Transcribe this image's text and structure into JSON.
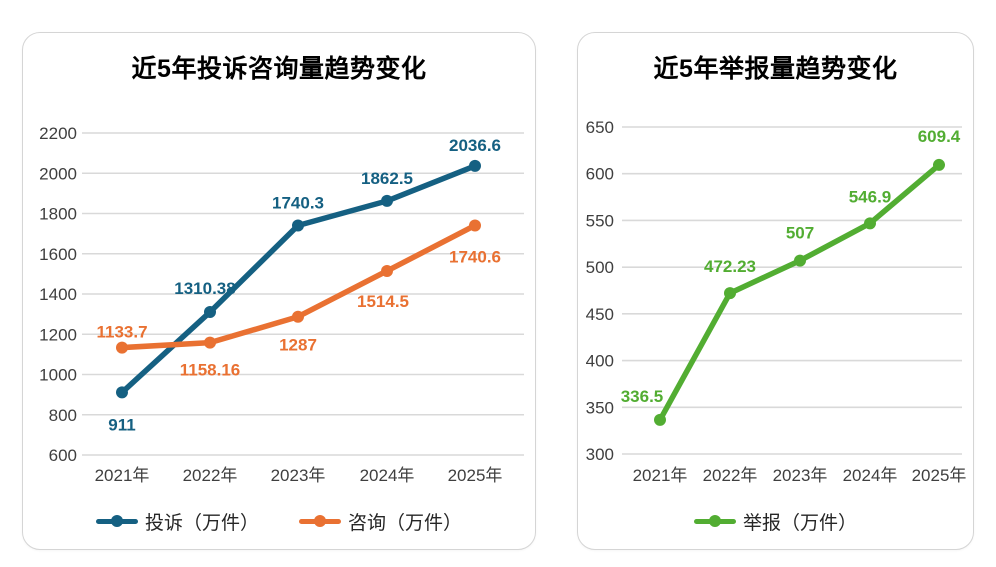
{
  "page": {
    "background": "#ffffff",
    "grid_color": "#d9d9d9",
    "tick_color": "#3f3f3f"
  },
  "chart_data": [
    {
      "type": "line",
      "title": "近5年投诉咨询量趋势变化",
      "categories": [
        "2021年",
        "2022年",
        "2023年",
        "2024年",
        "2025年"
      ],
      "xlabel": "",
      "ylabel": "",
      "y_axis": {
        "min": 600,
        "max": 2200,
        "step": 200
      },
      "grid": true,
      "legend_position": "bottom",
      "series": [
        {
          "key": "complaints",
          "name": "投诉（万件）",
          "color": "#156082",
          "values": [
            911,
            1310.38,
            1740.3,
            1862.5,
            2036.6
          ],
          "labels": [
            "911",
            "1310.38",
            "1740.3",
            "1862.5",
            "2036.6"
          ],
          "label_offsets": [
            [
              0,
              38
            ],
            [
              -5,
              -18
            ],
            [
              0,
              -17
            ],
            [
              0,
              -17
            ],
            [
              0,
              -15
            ]
          ]
        },
        {
          "key": "consultations",
          "name": "咨询（万件）",
          "color": "#e97132",
          "values": [
            1133.7,
            1158.16,
            1287,
            1514.5,
            1740.6
          ],
          "labels": [
            "1133.7",
            "1158.16",
            "1287",
            "1514.5",
            "1740.6"
          ],
          "label_offsets": [
            [
              0,
              -10
            ],
            [
              0,
              33
            ],
            [
              0,
              34
            ],
            [
              -4,
              36
            ],
            [
              0,
              37
            ]
          ]
        }
      ]
    },
    {
      "type": "line",
      "title": "近5年举报量趋势变化",
      "categories": [
        "2021年",
        "2022年",
        "2023年",
        "2024年",
        "2025年"
      ],
      "xlabel": "",
      "ylabel": "",
      "y_axis": {
        "min": 300,
        "max": 650,
        "step": 50
      },
      "grid": true,
      "legend_position": "bottom",
      "series": [
        {
          "key": "reports",
          "name": "举报（万件）",
          "color": "#52ad32",
          "values": [
            336.5,
            472.23,
            507,
            546.9,
            609.4
          ],
          "labels": [
            "336.5",
            "472.23",
            "507",
            "546.9",
            "609.4"
          ],
          "label_offsets": [
            [
              -18,
              -18
            ],
            [
              0,
              -21
            ],
            [
              0,
              -22
            ],
            [
              0,
              -21
            ],
            [
              0,
              -23
            ]
          ]
        }
      ]
    }
  ]
}
